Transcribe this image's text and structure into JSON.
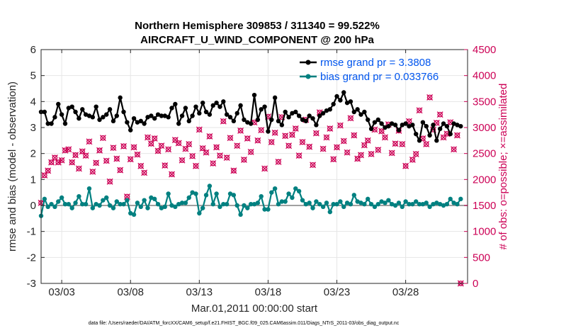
{
  "chart_data": {
    "type": "line",
    "title_line1": "Northern Hemisphere 309853 / 311340 = 99.522%",
    "title_line2": "AIRCRAFT_U_WIND_COMPONENT @ 200 hPa",
    "xlabel": "Mar.01,2011 00:00:00 start",
    "ylabel_left": "rmse and bias (model - observation)",
    "ylabel_right": "# of obs: o=possible; ×=assimilated",
    "footer": "data file: /Users/raeder/DAI/ATM_forcXX/CAM6_setup/f.e21.FHIST_BGC.f09_025.CAM6assim.011/Diags_NTrS_2011-03/obs_diag_output.nc",
    "xlim": [
      1.5,
      32.5
    ],
    "x_ticks": [
      3,
      8,
      13,
      18,
      23,
      28
    ],
    "x_tick_labels": [
      "03/03",
      "03/08",
      "03/13",
      "03/18",
      "03/23",
      "03/28"
    ],
    "ylim_left": [
      -3,
      6
    ],
    "y_ticks_left": [
      -3,
      -2,
      -1,
      0,
      1,
      2,
      3,
      4,
      5,
      6
    ],
    "y_tick_labels_left": [
      "-3",
      "-2",
      "-1",
      "0",
      "1",
      "2",
      "3",
      "4",
      "5",
      "6"
    ],
    "ylim_right": [
      0,
      4500
    ],
    "y_ticks_right": [
      0,
      500,
      1000,
      1500,
      2000,
      2500,
      3000,
      3500,
      4000,
      4500
    ],
    "y_tick_labels_right": [
      "0",
      "500",
      "1000",
      "1500",
      "2000",
      "2500",
      "3000",
      "3500",
      "4000",
      "4500"
    ],
    "legend": {
      "rmse_label": "rmse grand pr = 3.3808",
      "bias_label": "bias grand pr = 0.033766",
      "placement": "top-right"
    },
    "colors": {
      "rmse": "#000000",
      "bias": "#008080",
      "obs": "#cc0055",
      "zero_line": "#a0a0a0",
      "grid": "#e6e6e6"
    },
    "x": [
      1.5,
      1.75,
      2.0,
      2.25,
      2.5,
      2.75,
      3.0,
      3.25,
      3.5,
      3.75,
      4.0,
      4.25,
      4.5,
      4.75,
      5.0,
      5.25,
      5.5,
      5.75,
      6.0,
      6.25,
      6.5,
      6.75,
      7.0,
      7.25,
      7.5,
      7.75,
      8.0,
      8.25,
      8.5,
      8.75,
      9.0,
      9.25,
      9.5,
      9.75,
      10.0,
      10.25,
      10.5,
      10.75,
      11.0,
      11.25,
      11.5,
      11.75,
      12.0,
      12.25,
      12.5,
      12.75,
      13.0,
      13.25,
      13.5,
      13.75,
      14.0,
      14.25,
      14.5,
      14.75,
      15.0,
      15.25,
      15.5,
      15.75,
      16.0,
      16.25,
      16.5,
      16.75,
      17.0,
      17.25,
      17.5,
      17.75,
      18.0,
      18.25,
      18.5,
      18.75,
      19.0,
      19.25,
      19.5,
      19.75,
      20.0,
      20.25,
      20.5,
      20.75,
      21.0,
      21.25,
      21.5,
      21.75,
      22.0,
      22.25,
      22.5,
      22.75,
      23.0,
      23.25,
      23.5,
      23.75,
      24.0,
      24.25,
      24.5,
      24.75,
      25.0,
      25.25,
      25.5,
      25.75,
      26.0,
      26.25,
      26.5,
      26.75,
      27.0,
      27.25,
      27.5,
      27.75,
      28.0,
      28.25,
      28.5,
      28.75,
      29.0,
      29.25,
      29.5,
      29.75,
      30.0,
      30.25,
      30.5,
      30.75,
      31.0,
      31.25,
      31.5,
      31.75,
      32.0
    ],
    "series": [
      {
        "name": "rmse",
        "values": [
          3.6,
          3.6,
          3.15,
          3.15,
          3.4,
          3.9,
          3.5,
          3.15,
          3.75,
          3.8,
          3.6,
          3.35,
          3.7,
          3.5,
          3.45,
          3.4,
          3.8,
          3.3,
          3.4,
          3.5,
          3.7,
          3.25,
          3.45,
          4.15,
          3.6,
          3.2,
          2.9,
          3.35,
          3.2,
          3.25,
          3.15,
          3.4,
          3.45,
          3.35,
          3.5,
          3.45,
          3.45,
          3.4,
          3.75,
          3.9,
          3.15,
          3.45,
          3.75,
          3.25,
          3.45,
          3.8,
          3.55,
          3.95,
          3.6,
          3.5,
          3.85,
          3.95,
          3.8,
          4.0,
          3.5,
          3.4,
          3.25,
          3.55,
          3.85,
          3.3,
          3.2,
          3.15,
          4.25,
          3.3,
          3.7,
          3.8,
          2.85,
          3.3,
          4.15,
          3.25,
          3.1,
          3.6,
          3.4,
          3.55,
          3.6,
          3.45,
          3.3,
          3.25,
          3.45,
          3.35,
          3.1,
          3.45,
          3.55,
          3.65,
          3.7,
          3.9,
          4.2,
          4.05,
          4.35,
          3.95,
          4.0,
          3.6,
          3.7,
          3.5,
          3.6,
          3.3,
          2.95,
          3.2,
          3.3,
          3.15,
          3.0,
          3.05,
          3.15,
          3.1,
          2.9,
          3.1,
          3.15,
          3.05,
          3.1,
          2.75,
          2.5,
          3.2,
          3.05,
          2.7,
          3.1,
          2.5,
          2.95,
          3.15,
          3.05,
          2.75,
          3.15,
          3.1,
          3.05
        ]
      },
      {
        "name": "bias",
        "values": [
          -0.4,
          0.25,
          -0.05,
          0.05,
          -0.05,
          0.15,
          0.3,
          0.05,
          0.05,
          -0.1,
          0.1,
          0.35,
          0.05,
          0.05,
          0.65,
          -0.1,
          0.05,
          0.0,
          0.2,
          0.3,
          0.0,
          -0.1,
          0.15,
          0.05,
          0.05,
          0.2,
          -0.3,
          -0.35,
          0.1,
          -0.05,
          0.2,
          -0.1,
          0.3,
          0.25,
          0.05,
          -0.1,
          -0.05,
          0.45,
          0.0,
          -0.05,
          0.05,
          0.1,
          0.1,
          0.3,
          0.5,
          0.45,
          -0.3,
          -0.1,
          0.4,
          0.75,
          0.05,
          0.45,
          -0.05,
          0.05,
          0.05,
          0.45,
          0.4,
          0.0,
          -0.35,
          0.0,
          -0.1,
          0.05,
          0.05,
          0.1,
          0.35,
          -0.15,
          -0.15,
          0.5,
          0.65,
          0.05,
          0.15,
          0.15,
          0.45,
          0.3,
          0.65,
          0.55,
          0.2,
          0.05,
          0.1,
          -0.1,
          0.15,
          0.05,
          -0.05,
          0.1,
          -0.25,
          0.05,
          0.05,
          0.15,
          -0.05,
          0.1,
          0.05,
          0.4,
          0.15,
          0.1,
          0.05,
          0.25,
          0.05,
          -0.05,
          0.05,
          0.15,
          0.1,
          0.2,
          0.05,
          0.0,
          0.1,
          -0.05,
          0.15,
          0.05,
          0.05,
          0.15,
          0.05,
          0.05,
          0.1,
          -0.05,
          0.05,
          0.1,
          0.05,
          0.0,
          0.05,
          0.25,
          0.1,
          0.05,
          0.25
        ]
      },
      {
        "name": "obs",
        "values": [
          1550,
          2080,
          2170,
          2330,
          2420,
          2330,
          2370,
          2560,
          2580,
          2330,
          2470,
          2210,
          2540,
          2460,
          2730,
          2150,
          2320,
          2560,
          2800,
          2360,
          1960,
          2610,
          2400,
          2180,
          2640,
          1670,
          2390,
          2620,
          2480,
          2260,
          2130,
          2810,
          2690,
          2790,
          2550,
          2650,
          2270,
          2580,
          2100,
          2760,
          2700,
          2370,
          2590,
          2680,
          2450,
          2260,
          2960,
          2600,
          2520,
          2830,
          2310,
          2620,
          2460,
          3120,
          2420,
          2800,
          2170,
          2650,
          2940,
          2380,
          2790,
          2530,
          3100,
          2750,
          2950,
          2210,
          3210,
          2720,
          2900,
          2340,
          3200,
          2840,
          2650,
          2860,
          2980,
          2460,
          2720,
          3150,
          2630,
          2280,
          2890,
          3290,
          2590,
          2810,
          2980,
          2390,
          2620,
          3040,
          2740,
          2520,
          3180,
          2850,
          2400,
          2470,
          2660,
          2750,
          2490,
          2960,
          2570,
          2930,
          2810,
          3060,
          2510,
          2690,
          2940,
          2680,
          2260,
          3120,
          2380,
          2490,
          3330,
          2790,
          2680,
          3580,
          2960,
          3090,
          3250,
          2810,
          2880,
          3100,
          2580,
          2850,
          0
        ]
      }
    ]
  }
}
